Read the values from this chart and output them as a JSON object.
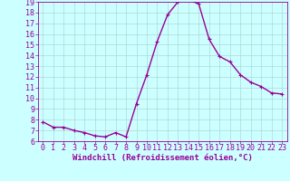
{
  "x": [
    0,
    1,
    2,
    3,
    4,
    5,
    6,
    7,
    8,
    9,
    10,
    11,
    12,
    13,
    14,
    15,
    16,
    17,
    18,
    19,
    20,
    21,
    22,
    23
  ],
  "y": [
    7.8,
    7.3,
    7.3,
    7.0,
    6.8,
    6.5,
    6.4,
    6.8,
    6.4,
    9.5,
    12.2,
    15.3,
    17.8,
    19.0,
    19.2,
    18.8,
    15.5,
    13.9,
    13.4,
    12.2,
    11.5,
    11.1,
    10.5,
    10.4
  ],
  "line_color": "#990099",
  "marker_color": "#990099",
  "bg_color": "#ccffff",
  "grid_color": "#b0d8d8",
  "xlabel": "Windchill (Refroidissement éolien,°C)",
  "ylim": [
    6,
    19
  ],
  "xlim": [
    -0.5,
    23.5
  ],
  "yticks": [
    6,
    7,
    8,
    9,
    10,
    11,
    12,
    13,
    14,
    15,
    16,
    17,
    18,
    19
  ],
  "xticks": [
    0,
    1,
    2,
    3,
    4,
    5,
    6,
    7,
    8,
    9,
    10,
    11,
    12,
    13,
    14,
    15,
    16,
    17,
    18,
    19,
    20,
    21,
    22,
    23
  ],
  "tick_label_color": "#990099",
  "axis_color": "#990099",
  "xlabel_color": "#990099",
  "xlabel_fontsize": 6.5,
  "tick_fontsize": 6,
  "marker_size": 2.5,
  "line_width": 1.0
}
